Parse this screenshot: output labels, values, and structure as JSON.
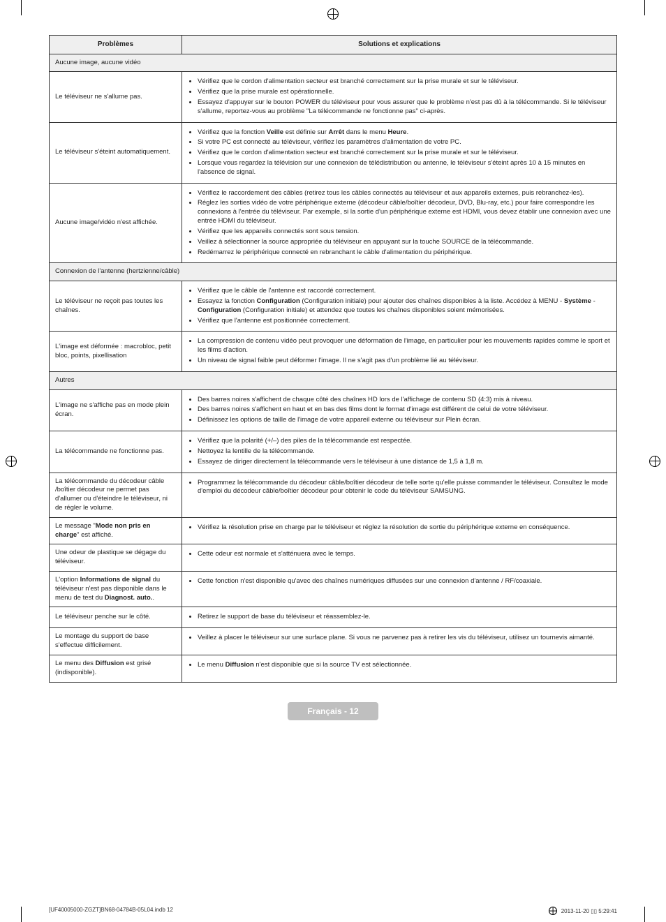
{
  "headers": {
    "problems": "Problèmes",
    "solutions": "Solutions et explications"
  },
  "sections": [
    {
      "title": "Aucune image, aucune vidéo"
    },
    {
      "title": "Connexion de l'antenne (hertzienne/câble)"
    },
    {
      "title": "Autres"
    }
  ],
  "rows": {
    "r1": {
      "prob": "Le téléviseur ne s'allume pas.",
      "sol": [
        "Vérifiez que le cordon d'alimentation secteur est branché correctement sur la prise murale et sur le téléviseur.",
        "Vérifiez que la prise murale est opérationnelle.",
        "Essayez d'appuyer sur le bouton POWER du téléviseur pour vous assurer que le problème n'est pas dû à la télécommande. Si le téléviseur s'allume, reportez-vous au problème \"La télécommande ne fonctionne pas\" ci-après."
      ]
    },
    "r2": {
      "prob": "Le téléviseur s'éteint automatiquement.",
      "sol": [
        "Vérifiez que la fonction <b>Veille</b> est définie sur <b>Arrêt</b> dans le menu <b>Heure</b>.",
        "Si votre PC est connecté au téléviseur, vérifiez les paramètres d'alimentation de votre PC.",
        "Vérifiez que le cordon d'alimentation secteur est branché correctement sur la prise murale et sur le téléviseur.",
        "Lorsque vous regardez la télévision sur une connexion de télédistribution ou antenne, le téléviseur s'éteint après 10 à 15 minutes en l'absence de signal."
      ]
    },
    "r3": {
      "prob": "Aucune image/vidéo n'est affichée.",
      "sol": [
        "Vérifiez le raccordement des câbles (retirez tous les câbles connectés au téléviseur et aux appareils externes, puis rebranchez-les).",
        "Réglez les sorties vidéo de votre périphérique externe (décodeur câble/boîtier décodeur, DVD, Blu-ray, etc.) pour faire correspondre les connexions à l'entrée du téléviseur. Par exemple, si la sortie d'un périphérique externe est HDMI, vous devez établir une connexion avec une entrée HDMI du téléviseur.",
        "Vérifiez que les appareils connectés sont sous tension.",
        "Veillez à sélectionner la source appropriée du téléviseur en appuyant sur la touche SOURCE de la télécommande.",
        "Redémarrez le périphérique connecté en rebranchant le câble d'alimentation du périphérique."
      ]
    },
    "r4": {
      "prob": "Le téléviseur ne reçoit pas toutes les chaînes.",
      "sol": [
        "Vérifiez que le câble de l'antenne est raccordé correctement.",
        "Essayez la fonction <b>Configuration</b> (Configuration initiale) pour ajouter des chaînes disponibles à la liste. Accédez à MENU - <b>Système</b> - <b>Configuration</b> (Configuration initiale) et attendez que toutes les chaînes disponibles soient mémorisées.",
        "Vérifiez que l'antenne est positionnée correctement."
      ]
    },
    "r5": {
      "prob": "L'image est déformée : macrobloc, petit bloc, points, pixellisation",
      "sol": [
        "La compression de contenu vidéo peut provoquer une déformation de l'image, en particulier pour les mouvements rapides comme le sport et les films d'action.",
        "Un niveau de signal faible peut déformer l'image. Il ne s'agit pas d'un problème lié au téléviseur."
      ]
    },
    "r6": {
      "prob": "L'image ne s'affiche pas en mode plein écran.",
      "sol": [
        "Des barres noires s'affichent de chaque côté des chaînes HD lors de l'affichage de contenu SD (4:3) mis à niveau.",
        "Des barres noires s'affichent en haut et en bas des films dont le format d'image est différent de celui de votre téléviseur.",
        "Définissez les options de taille de l'image de votre appareil externe ou téléviseur sur Plein écran."
      ]
    },
    "r7": {
      "prob": "La télécommande ne fonctionne pas.",
      "sol": [
        "Vérifiez que la polarité (+/–) des piles de la télécommande est respectée.",
        "Nettoyez la lentille de la télécommande.",
        "Essayez de diriger directement la télécommande vers le téléviseur à une distance de 1,5 à 1,8 m."
      ]
    },
    "r8": {
      "prob": "La télécommande du décodeur câble /boîtier décodeur ne permet pas d'allumer ou d'éteindre le téléviseur, ni de régler le volume.",
      "sol": [
        "Programmez la télécommande du décodeur câble/boîtier décodeur de telle sorte qu'elle puisse commander le téléviseur. Consultez le mode d'emploi du décodeur câble/boîtier décodeur pour obtenir le code du téléviseur SAMSUNG."
      ]
    },
    "r9": {
      "prob": "Le message \"<b>Mode non pris en charge</b>\" est affiché.",
      "sol": [
        "Vérifiez la résolution prise en charge par le téléviseur et réglez la résolution de sortie du périphérique externe en conséquence."
      ]
    },
    "r10": {
      "prob": "Une odeur de plastique se dégage du téléviseur.",
      "sol": [
        "Cette odeur est normale et s'atténuera avec le temps."
      ]
    },
    "r11": {
      "prob": "L'option <b>Informations de signal</b> du téléviseur n'est pas disponible dans le menu de test du <b>Diagnost. auto.</b>.",
      "sol": [
        "Cette fonction n'est disponible qu'avec des chaînes numériques diffusées sur une connexion d'antenne / RF/coaxiale."
      ]
    },
    "r12": {
      "prob": "Le téléviseur penche sur le côté.",
      "sol": [
        "Retirez le support de base du téléviseur et réassemblez-le."
      ]
    },
    "r13": {
      "prob": "Le montage du support de base s'effectue difficilement.",
      "sol": [
        "Veillez à placer le téléviseur sur une surface plane. Si vous ne parvenez pas à retirer les vis du téléviseur, utilisez un tournevis aimanté."
      ]
    },
    "r14": {
      "prob": "Le menu des <b>Diffusion</b> est grisé (indisponible).",
      "sol": [
        "Le menu <b>Diffusion</b> n'est disponible que si la source TV est sélectionnée."
      ]
    }
  },
  "footer": {
    "badge": "Français - 12",
    "left": "[UF40005000-ZGZT]BN68-04784B-05L04.indb   12",
    "right": "2013-11-20   ▯▯ 5:29:41"
  }
}
